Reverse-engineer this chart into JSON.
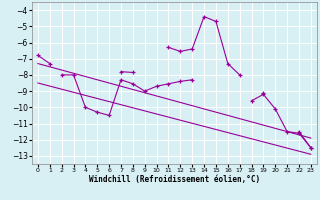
{
  "x": [
    0,
    1,
    2,
    3,
    4,
    5,
    6,
    7,
    8,
    9,
    10,
    11,
    12,
    13,
    14,
    15,
    16,
    17,
    18,
    19,
    20,
    21,
    22,
    23
  ],
  "line_main": [
    [
      -6.8,
      -7.3,
      null,
      null,
      null,
      null,
      null,
      -7.8,
      -7.85,
      null,
      null,
      -6.3,
      -6.55,
      -6.4,
      -4.4,
      -4.7,
      -7.3,
      -8.0,
      null,
      -9.1,
      null,
      null,
      -11.5,
      -12.5
    ],
    [
      null,
      null,
      -8.0,
      -8.0,
      -10.0,
      -10.3,
      -10.5,
      -8.3,
      -8.55,
      -9.0,
      -8.7,
      -8.55,
      -8.4,
      -8.3,
      null,
      null,
      null,
      null,
      null,
      null,
      null,
      null,
      null,
      null
    ],
    [
      null,
      null,
      null,
      null,
      null,
      null,
      null,
      null,
      null,
      null,
      null,
      null,
      null,
      null,
      null,
      null,
      null,
      null,
      -9.6,
      -9.2,
      -10.1,
      -11.5,
      -11.6,
      -12.5
    ]
  ],
  "line_straight1_pts": [
    0,
    -7.3,
    23,
    -11.9
  ],
  "line_straight2_pts": [
    0,
    -8.5,
    23,
    -12.9
  ],
  "color": "#990099",
  "bg_color": "#d8eff4",
  "grid_color": "#ffffff",
  "xlabel": "Windchill (Refroidissement éolien,°C)",
  "ylim": [
    -13.5,
    -3.5
  ],
  "xlim": [
    -0.5,
    23.5
  ],
  "yticks": [
    -13,
    -12,
    -11,
    -10,
    -9,
    -8,
    -7,
    -6,
    -5,
    -4
  ],
  "xticks": [
    0,
    1,
    2,
    3,
    4,
    5,
    6,
    7,
    8,
    9,
    10,
    11,
    12,
    13,
    14,
    15,
    16,
    17,
    18,
    19,
    20,
    21,
    22,
    23
  ]
}
